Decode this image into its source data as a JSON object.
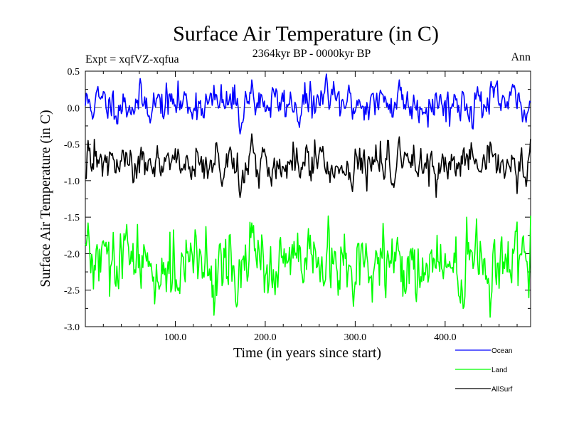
{
  "chart_data": {
    "type": "line",
    "title": "Surface Air Temperature (in C)",
    "subtitle": "2364kyr BP - 0000kyr BP",
    "expt_label": "Expt = xqfVZ-xqfua",
    "period_label": "Ann",
    "xlabel": "Time (in years since start)",
    "ylabel": "Surface Air Temperature (in C)",
    "xlim": [
      0,
      495
    ],
    "ylim": [
      -3.0,
      0.5
    ],
    "xticks": [
      100,
      200,
      300,
      400
    ],
    "xtick_labels": [
      "100.0",
      "200.0",
      "300.0",
      "400.0"
    ],
    "yticks": [
      0.5,
      0.0,
      -0.5,
      -1.0,
      -1.5,
      -2.0,
      -2.5,
      -3.0
    ],
    "ytick_labels": [
      "0.5",
      "0.0",
      "-0.5",
      "-1.0",
      "-1.5",
      "-2.0",
      "-2.5",
      "-3.0"
    ],
    "zero_line": 0.0,
    "n_years": 495,
    "series": [
      {
        "name": "Ocean",
        "color": "#0000ff",
        "mean": 0.06,
        "amplitude": 0.13,
        "anomalies": [
          [
            172,
            -0.36
          ],
          [
            185,
            0.38
          ],
          [
            268,
            0.46
          ],
          [
            238,
            -0.27
          ],
          [
            349,
            0.38
          ],
          [
            490,
            -0.2
          ]
        ]
      },
      {
        "name": "Land",
        "color": "#00ff00",
        "mean": -2.17,
        "amplitude": 0.24,
        "anomalies": [
          [
            3,
            -1.58
          ],
          [
            185,
            -1.58
          ],
          [
            46,
            -1.6
          ],
          [
            168,
            -2.73
          ],
          [
            420,
            -2.75
          ],
          [
            298,
            -2.72
          ]
        ]
      },
      {
        "name": "AllSurf",
        "color": "#000000",
        "mean": -0.78,
        "amplitude": 0.13,
        "anomalies": [
          [
            3,
            -0.45
          ],
          [
            185,
            -0.36
          ],
          [
            172,
            -1.23
          ],
          [
            297,
            -1.15
          ],
          [
            490,
            -1.08
          ],
          [
            349,
            -0.4
          ]
        ]
      }
    ],
    "legend": {
      "placement": "bottom-right",
      "entries": [
        "Ocean",
        "Land",
        "AllSurf"
      ]
    }
  }
}
